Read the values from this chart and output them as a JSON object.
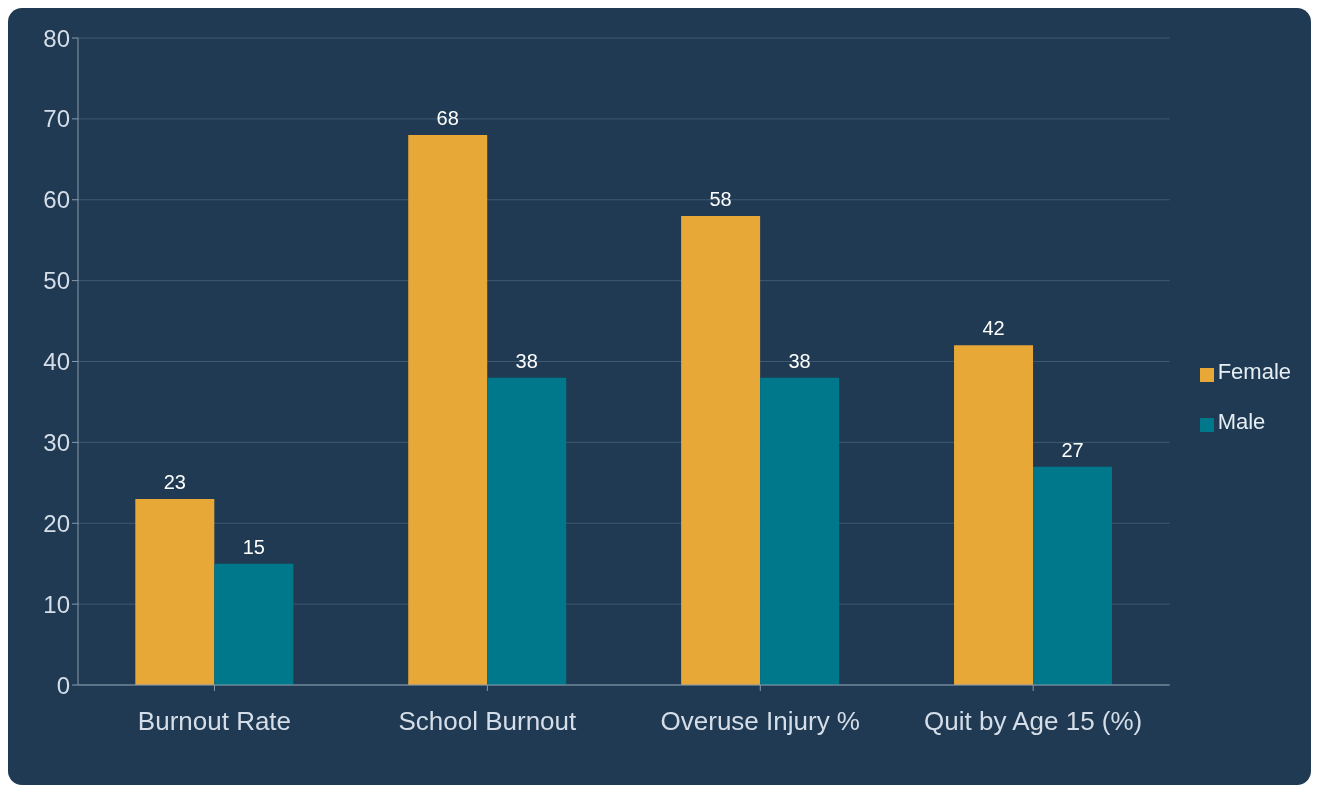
{
  "chart_data": {
    "type": "bar",
    "categories": [
      "Burnout Rate",
      "School Burnout",
      "Overuse Injury %",
      "Quit by Age 15 (%)"
    ],
    "series": [
      {
        "name": "Female",
        "color": "#e8a838",
        "values": [
          23,
          68,
          58,
          42
        ]
      },
      {
        "name": "Male",
        "color": "#00788c",
        "values": [
          15,
          38,
          38,
          27
        ]
      }
    ],
    "ylim": [
      0,
      80
    ],
    "yticks": [
      0,
      10,
      20,
      30,
      40,
      50,
      60,
      70,
      80
    ],
    "grid": "y",
    "legend": "right",
    "data_labels": true
  }
}
